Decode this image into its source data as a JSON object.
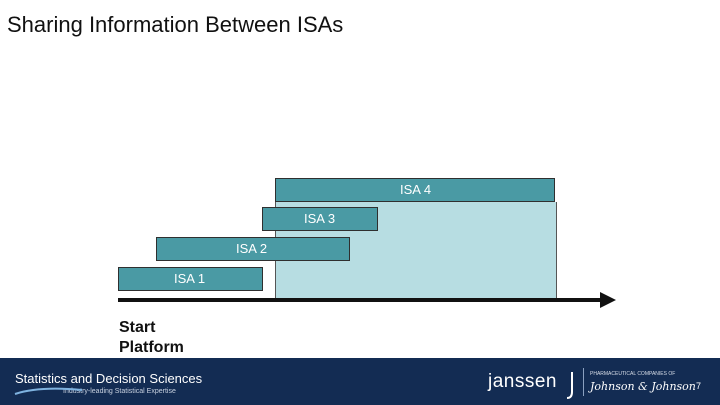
{
  "title": "Sharing Information Between ISAs",
  "isas": [
    {
      "label": "ISA 4"
    },
    {
      "label": "ISA 3"
    },
    {
      "label": "ISA 2"
    },
    {
      "label": "ISA 1"
    }
  ],
  "start_label_line1": "Start",
  "start_label_line2": "Platform",
  "footer": {
    "title": "Statistics and Decision Sciences",
    "subtitle": "Industry-leading Statistical Expertise",
    "brand": "janssen",
    "parent_line": "PHARMACEUTICAL COMPANIES OF",
    "parent": "Johnson & Johnson",
    "page_number": "7"
  },
  "colors": {
    "bar": "#4a9aa4",
    "shade": "#b7dde2",
    "footer": "#132c53"
  }
}
